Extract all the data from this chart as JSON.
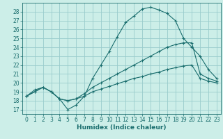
{
  "title": "",
  "xlabel": "Humidex (Indice chaleur)",
  "bg_color": "#cceee8",
  "grid_color": "#99cccc",
  "line_color": "#1a6e6e",
  "xlim": [
    -0.5,
    23.5
  ],
  "ylim": [
    16.5,
    29.0
  ],
  "yticks": [
    17,
    18,
    19,
    20,
    21,
    22,
    23,
    24,
    25,
    26,
    27,
    28
  ],
  "xticks": [
    0,
    1,
    2,
    3,
    4,
    5,
    6,
    7,
    8,
    9,
    10,
    11,
    12,
    13,
    14,
    15,
    16,
    17,
    18,
    19,
    20,
    21,
    22,
    23
  ],
  "line1_y": [
    18.5,
    19.2,
    19.5,
    19.0,
    18.2,
    17.0,
    17.5,
    18.5,
    20.5,
    22.0,
    23.5,
    25.2,
    26.8,
    27.5,
    28.3,
    28.5,
    28.2,
    27.8,
    27.0,
    25.0,
    24.0,
    23.0,
    21.5,
    20.5
  ],
  "line2_y": [
    18.5,
    19.0,
    19.5,
    19.0,
    18.2,
    18.0,
    18.2,
    18.8,
    19.5,
    20.0,
    20.5,
    21.0,
    21.5,
    22.0,
    22.5,
    23.0,
    23.5,
    24.0,
    24.3,
    24.5,
    24.5,
    21.0,
    20.5,
    20.2
  ],
  "line3_y": [
    18.5,
    19.0,
    19.5,
    19.0,
    18.2,
    18.0,
    18.2,
    18.5,
    19.0,
    19.3,
    19.6,
    19.9,
    20.2,
    20.5,
    20.7,
    21.0,
    21.2,
    21.5,
    21.7,
    21.9,
    22.0,
    20.5,
    20.2,
    20.0
  ],
  "marker_size": 3,
  "linewidth": 0.8,
  "tick_fontsize": 5.5,
  "xlabel_fontsize": 6.5
}
